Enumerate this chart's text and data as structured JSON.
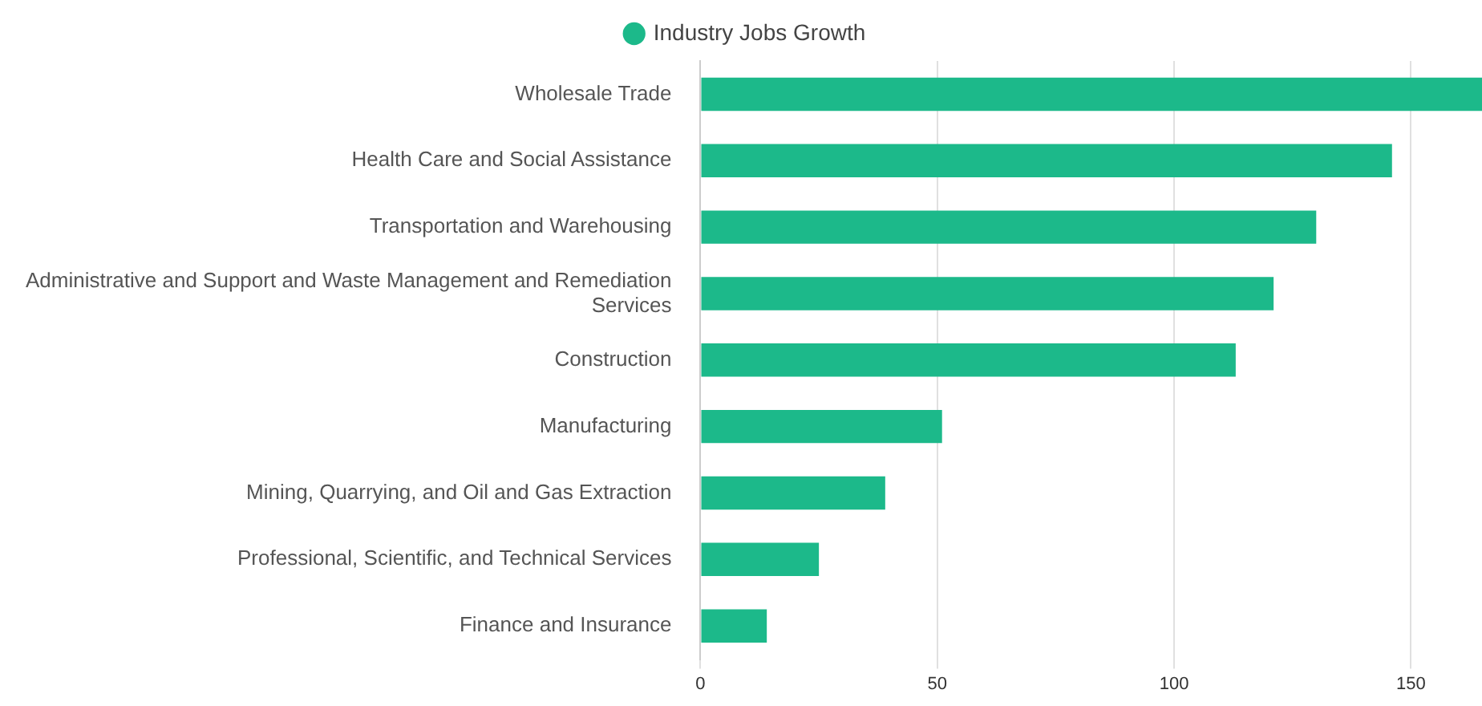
{
  "chart_data": {
    "type": "bar",
    "orientation": "horizontal",
    "categories": [
      "Wholesale Trade",
      "Health Care and Social Assistance",
      "Transportation and Warehousing",
      "Administrative and Support and Waste Management and Remediation Services",
      "Construction",
      "Manufacturing",
      "Mining, Quarrying, and Oil and Gas Extraction",
      "Professional, Scientific, and Technical Services",
      "Finance and Insurance"
    ],
    "series": [
      {
        "name": "Industry Jobs Growth",
        "color": "#1cb98a",
        "values": [
          165,
          146,
          130,
          121,
          113,
          51,
          39,
          25,
          14
        ]
      }
    ],
    "xlim": [
      0,
      165
    ],
    "xticks": [
      0,
      50,
      100,
      150
    ],
    "grid": "x",
    "legend": "top",
    "marker": "circle"
  }
}
